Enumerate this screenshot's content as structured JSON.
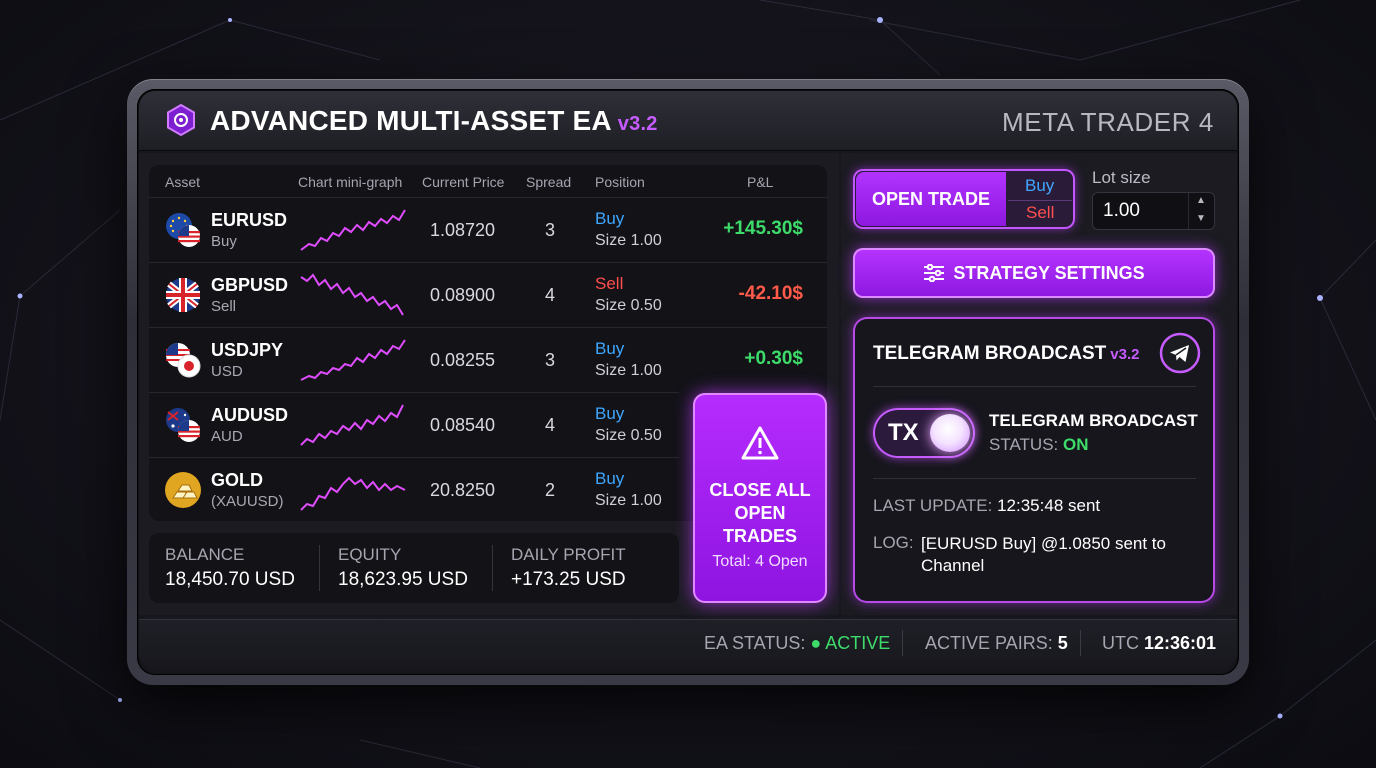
{
  "app": {
    "title": "ADVANCED MULTI-ASSET EA",
    "version": "v3.2",
    "platform": "META TRADER 4"
  },
  "table": {
    "headers": {
      "asset": "Asset",
      "chart": "Chart mini-graph",
      "price": "Current Price",
      "spread": "Spread",
      "position": "Position",
      "pnl": "P&L"
    },
    "rows": [
      {
        "symbol": "EURUSD",
        "sub": "Buy",
        "flag": "eu-us-flag-icon",
        "price": "1.08720",
        "spread": "3",
        "side": "Buy",
        "size_label": "Size",
        "size": "1.00",
        "pnl": "+145.30$",
        "trend": "up"
      },
      {
        "symbol": "GBPUSD",
        "sub": "Sell",
        "flag": "uk-flag-icon",
        "price": "0.08900",
        "spread": "4",
        "side": "Sell",
        "size_label": "Size",
        "size": "0.50",
        "pnl": "-42.10$",
        "trend": "down"
      },
      {
        "symbol": "USDJPY",
        "sub": "USD",
        "flag": "us-jp-flag-icon",
        "price": "0.08255",
        "spread": "3",
        "side": "Buy",
        "size_label": "Size",
        "size": "1.00",
        "pnl": "+0.30$",
        "trend": "up"
      },
      {
        "symbol": "AUDUSD",
        "sub": "AUD",
        "flag": "au-us-flag-icon",
        "price": "0.08540",
        "spread": "4",
        "side": "Buy",
        "size_label": "Size",
        "size": "0.50",
        "pnl": "",
        "trend": "up"
      },
      {
        "symbol": "GOLD",
        "sub": "(XAUUSD)",
        "flag": "gold-bars-icon",
        "price": "20.8250",
        "spread": "2",
        "side": "Buy",
        "size_label": "Size",
        "size": "1.00",
        "pnl": "",
        "trend": "flat"
      }
    ]
  },
  "close_all": {
    "label": "CLOSE ALL\nOPEN\nTRADES",
    "total": "Total: 4 Open",
    "icon": "warning-icon"
  },
  "stats": {
    "balance_label": "BALANCE",
    "balance": "18,450.70 USD",
    "equity_label": "EQUITY",
    "equity": "18,623.95 USD",
    "daily_label": "DAILY PROFIT",
    "daily": "+173.25 USD"
  },
  "trade": {
    "open_label": "OPEN TRADE",
    "buy_label": "Buy",
    "sell_label": "Sell",
    "lot_label": "Lot size",
    "lot_value": "1.00"
  },
  "strategy": {
    "label": "STRATEGY SETTINGS",
    "icon": "sliders-icon"
  },
  "telegram": {
    "title": "TELEGRAM BROADCAST",
    "version": "v3.2",
    "icon": "telegram-icon",
    "toggle_label": "TX",
    "toggle_on": true,
    "status_title": "TELEGRAM BROADCAST",
    "status_prefix": "STATUS:",
    "status_value": "ON",
    "last_update_label": "LAST UPDATE:",
    "last_update_value": "12:35:48 sent",
    "log_label": "LOG:",
    "log_value": "[EURUSD Buy] @1.0850 sent to Channel"
  },
  "statusbar": {
    "ea_status_label": "EA STATUS:",
    "ea_status_value": "ACTIVE",
    "pairs_label": "ACTIVE PAIRS:",
    "pairs_value": "5",
    "utc_label": "UTC",
    "utc_value": "12:36:01"
  },
  "colors": {
    "accent": "#b233ff",
    "buy": "#3fa7ff",
    "sell": "#ff4f4f",
    "profit": "#3ddc6a",
    "loss": "#ff5a4a"
  }
}
